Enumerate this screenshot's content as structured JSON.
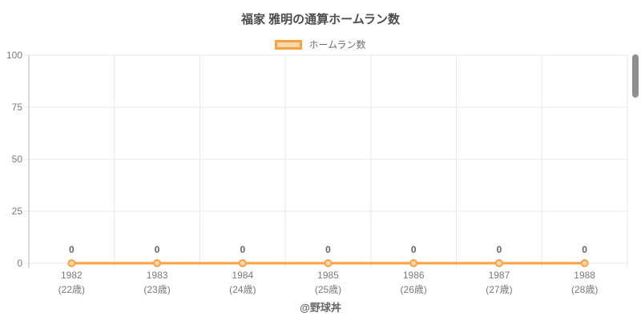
{
  "chart": {
    "title": "福家 雅明の通算ホームラン数",
    "legend_label": "ホームラン数",
    "footer": "@野球丼"
  },
  "chart_data": {
    "type": "line",
    "title": "福家 雅明の通算ホームラン数",
    "categories": [
      "1982",
      "1983",
      "1984",
      "1985",
      "1986",
      "1987",
      "1988"
    ],
    "category_sublabels": [
      "(22歳)",
      "(23歳)",
      "(24歳)",
      "(25歳)",
      "(26歳)",
      "(27歳)",
      "(28歳)"
    ],
    "series": [
      {
        "name": "ホームラン数",
        "values": [
          0,
          0,
          0,
          0,
          0,
          0,
          0
        ]
      }
    ],
    "ylim": [
      0,
      100
    ],
    "yticks": [
      0,
      25,
      50,
      75,
      100
    ],
    "grid": true,
    "legend_position": "top",
    "data_labels_shown": true,
    "footer": "@野球丼",
    "colors": {
      "line": "#ff9f40",
      "marker_fill": "#fbd8ab",
      "grid": "#e8e8e8",
      "axis": "#b6b6b6",
      "tick_text": "#7a7a7a",
      "data_label": "#666666",
      "title_text": "#4c4c4c",
      "scrollbar": "#8f8f8f"
    }
  }
}
